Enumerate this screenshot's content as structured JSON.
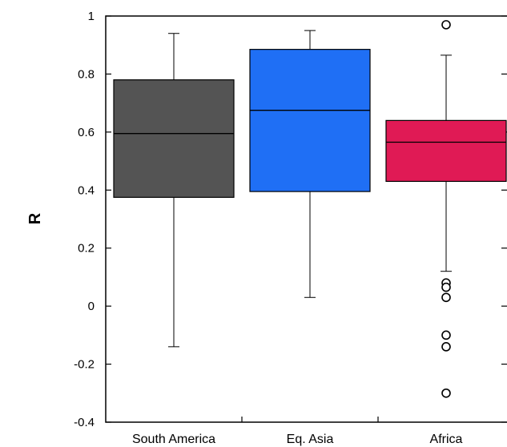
{
  "chart_data": {
    "type": "box",
    "title": "",
    "xlabel": "",
    "ylabel": "R",
    "ylim": [
      -0.4,
      1
    ],
    "yticks": [
      -0.4,
      -0.2,
      0,
      0.2,
      0.4,
      0.6,
      0.8,
      1
    ],
    "ytick_labels": [
      "-0.4",
      "-0.2",
      "0",
      "0.2",
      "0.4",
      "0.6",
      "0.8",
      "1"
    ],
    "grid": false,
    "categories": [
      "South America",
      "Eq. Asia",
      "Africa"
    ],
    "boxes": [
      {
        "category": "South America",
        "whisker_low": -0.14,
        "q1": 0.375,
        "median": 0.595,
        "q3": 0.78,
        "whisker_high": 0.94,
        "outliers": [],
        "color": "#545454"
      },
      {
        "category": "Eq. Asia",
        "whisker_low": 0.03,
        "q1": 0.395,
        "median": 0.675,
        "q3": 0.885,
        "whisker_high": 0.95,
        "outliers": [],
        "color": "#1f6ff5"
      },
      {
        "category": "Africa",
        "whisker_low": 0.12,
        "q1": 0.43,
        "median": 0.565,
        "q3": 0.64,
        "whisker_high": 0.865,
        "outliers": [
          0.97,
          0.08,
          0.065,
          0.03,
          -0.1,
          -0.14,
          -0.3
        ],
        "color": "#e01a55"
      }
    ]
  }
}
